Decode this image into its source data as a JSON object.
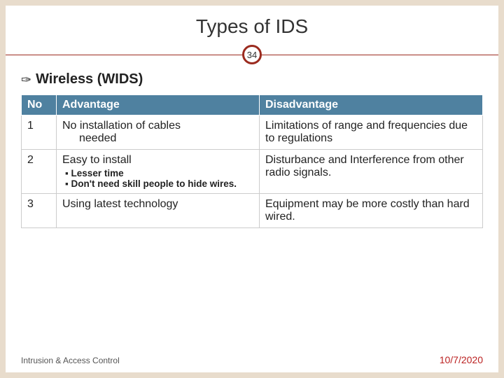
{
  "colors": {
    "slide_bg": "#e8dccc",
    "inner_bg": "#ffffff",
    "accent": "#9b2b1f",
    "table_header_bg": "#4f81a0",
    "table_header_fg": "#ffffff",
    "table_border": "#cccccc",
    "footer_date_color": "#b22222"
  },
  "slide": {
    "title": "Types of IDS",
    "page_number": "34",
    "bullet": "Wireless (WIDS)"
  },
  "table": {
    "headers": {
      "no": "No",
      "advantage": "Advantage",
      "disadvantage": "Disadvantage"
    },
    "rows": [
      {
        "no": "1",
        "advantage_line1": "No installation of cables",
        "advantage_line2": "needed",
        "sub": [],
        "disadvantage": "Limitations of range and frequencies due to regulations"
      },
      {
        "no": "2",
        "advantage_line1": "Easy to install",
        "advantage_line2": "",
        "sub": [
          "Lesser time",
          "Don't need skill people to hide wires."
        ],
        "disadvantage": "Disturbance and Interference from other radio signals."
      },
      {
        "no": "3",
        "advantage_line1": "Using latest technology",
        "advantage_line2": "",
        "sub": [],
        "disadvantage": "Equipment may be more costly than hard wired."
      }
    ]
  },
  "footer": {
    "left": "Intrusion & Access Control",
    "right": "10/7/2020"
  }
}
